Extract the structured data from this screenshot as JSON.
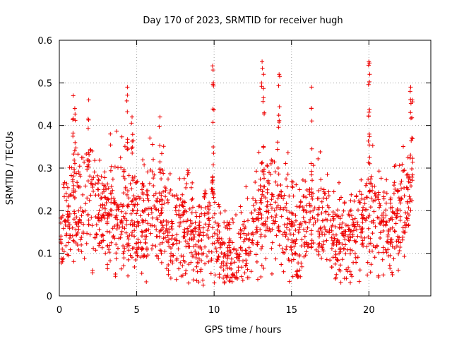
{
  "chart_data": {
    "type": "scatter",
    "title": "Day 170 of 2023, SRMTID for receiver hugh",
    "xlabel": "GPS time / hours",
    "ylabel": "SRMTID / TECUs",
    "xlim": [
      0,
      24.0
    ],
    "ylim": [
      0,
      0.6
    ],
    "xticks": [
      0,
      5,
      10,
      15,
      20
    ],
    "yticks": [
      0,
      0.1,
      0.2,
      0.3,
      0.4,
      0.5,
      0.6
    ],
    "ytick_labels": [
      "0",
      "0.1",
      "0.2",
      "0.3",
      "0.4",
      "0.5",
      "0.6"
    ],
    "grid": true,
    "marker": "plus",
    "series_color": "#ee0000",
    "trend": [
      {
        "x": 0.0,
        "y": 0.14
      },
      {
        "x": 0.5,
        "y": 0.18
      },
      {
        "x": 1.0,
        "y": 0.19
      },
      {
        "x": 1.5,
        "y": 0.2
      },
      {
        "x": 2.0,
        "y": 0.21
      },
      {
        "x": 2.5,
        "y": 0.2
      },
      {
        "x": 3.0,
        "y": 0.19
      },
      {
        "x": 3.5,
        "y": 0.2
      },
      {
        "x": 4.0,
        "y": 0.19
      },
      {
        "x": 4.5,
        "y": 0.2
      },
      {
        "x": 5.0,
        "y": 0.17
      },
      {
        "x": 5.5,
        "y": 0.17
      },
      {
        "x": 6.0,
        "y": 0.18
      },
      {
        "x": 6.5,
        "y": 0.19
      },
      {
        "x": 7.0,
        "y": 0.16
      },
      {
        "x": 7.5,
        "y": 0.15
      },
      {
        "x": 8.0,
        "y": 0.17
      },
      {
        "x": 8.5,
        "y": 0.14
      },
      {
        "x": 9.0,
        "y": 0.12
      },
      {
        "x": 9.5,
        "y": 0.16
      },
      {
        "x": 10.0,
        "y": 0.15
      },
      {
        "x": 10.5,
        "y": 0.11
      },
      {
        "x": 11.0,
        "y": 0.09
      },
      {
        "x": 11.5,
        "y": 0.09
      },
      {
        "x": 12.0,
        "y": 0.11
      },
      {
        "x": 12.5,
        "y": 0.13
      },
      {
        "x": 13.0,
        "y": 0.18
      },
      {
        "x": 13.5,
        "y": 0.22
      },
      {
        "x": 14.0,
        "y": 0.21
      },
      {
        "x": 14.5,
        "y": 0.18
      },
      {
        "x": 15.0,
        "y": 0.14
      },
      {
        "x": 15.5,
        "y": 0.14
      },
      {
        "x": 16.0,
        "y": 0.18
      },
      {
        "x": 16.5,
        "y": 0.2
      },
      {
        "x": 17.0,
        "y": 0.17
      },
      {
        "x": 17.5,
        "y": 0.14
      },
      {
        "x": 18.0,
        "y": 0.13
      },
      {
        "x": 18.5,
        "y": 0.14
      },
      {
        "x": 19.0,
        "y": 0.15
      },
      {
        "x": 19.5,
        "y": 0.18
      },
      {
        "x": 20.0,
        "y": 0.2
      },
      {
        "x": 20.5,
        "y": 0.16
      },
      {
        "x": 21.0,
        "y": 0.15
      },
      {
        "x": 21.5,
        "y": 0.15
      },
      {
        "x": 22.0,
        "y": 0.18
      },
      {
        "x": 22.5,
        "y": 0.21
      },
      {
        "x": 22.8,
        "y": 0.22
      }
    ],
    "peaks": [
      {
        "x": 0.9,
        "y": 0.47
      },
      {
        "x": 1.0,
        "y": 0.44
      },
      {
        "x": 1.9,
        "y": 0.46
      },
      {
        "x": 4.4,
        "y": 0.49
      },
      {
        "x": 4.7,
        "y": 0.42
      },
      {
        "x": 6.5,
        "y": 0.42
      },
      {
        "x": 9.9,
        "y": 0.54
      },
      {
        "x": 9.95,
        "y": 0.5
      },
      {
        "x": 13.1,
        "y": 0.55
      },
      {
        "x": 13.2,
        "y": 0.52
      },
      {
        "x": 14.2,
        "y": 0.52
      },
      {
        "x": 16.3,
        "y": 0.49
      },
      {
        "x": 20.0,
        "y": 0.55
      },
      {
        "x": 20.05,
        "y": 0.52
      },
      {
        "x": 22.7,
        "y": 0.49
      },
      {
        "x": 22.8,
        "y": 0.46
      }
    ],
    "minima": [
      {
        "x": 9.3,
        "y": 0.025
      },
      {
        "x": 11.2,
        "y": 0.05
      },
      {
        "x": 11.5,
        "y": 0.04
      },
      {
        "x": 15.3,
        "y": 0.05
      },
      {
        "x": 17.9,
        "y": 0.05
      }
    ]
  }
}
